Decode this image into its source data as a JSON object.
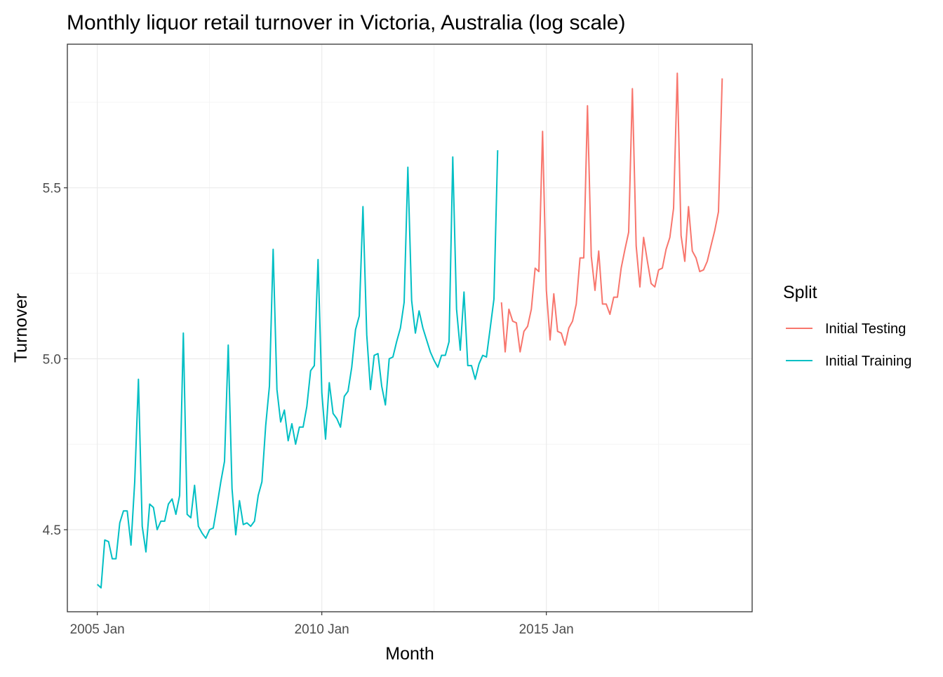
{
  "chart_data": {
    "type": "line",
    "title": "Monthly liquor retail turnover in Victoria, Australia (log scale)",
    "xlabel": "Month",
    "ylabel": "Turnover",
    "x_ticks": [
      "2005 Jan",
      "2010 Jan",
      "2015 Jan"
    ],
    "y_ticks": [
      "4.5",
      "5.0",
      "5.5"
    ],
    "x_range": [
      "2004-05",
      "2019-08"
    ],
    "ylim": [
      4.26,
      5.92
    ],
    "grid": true,
    "legend": {
      "title": "Split",
      "placement": "right"
    },
    "series": [
      {
        "name": "Initial Testing",
        "color": "#F8766D",
        "start": "2014-01",
        "values": [
          5.165,
          5.02,
          5.145,
          5.11,
          5.105,
          5.02,
          5.08,
          5.095,
          5.145,
          5.265,
          5.255,
          5.665,
          5.2,
          5.055,
          5.19,
          5.08,
          5.075,
          5.04,
          5.09,
          5.11,
          5.16,
          5.295,
          5.295,
          5.74,
          5.3,
          5.2,
          5.315,
          5.16,
          5.16,
          5.13,
          5.18,
          5.18,
          5.265,
          5.32,
          5.37,
          5.79,
          5.33,
          5.21,
          5.355,
          5.285,
          5.22,
          5.21,
          5.26,
          5.265,
          5.32,
          5.355,
          5.44,
          5.835,
          5.36,
          5.285,
          5.445,
          5.315,
          5.295,
          5.255,
          5.26,
          5.285,
          5.33,
          5.375,
          5.43,
          5.82
        ]
      },
      {
        "name": "Initial Training",
        "color": "#00BFC4",
        "start": "2005-01",
        "values": [
          4.34,
          4.33,
          4.47,
          4.465,
          4.415,
          4.415,
          4.52,
          4.555,
          4.555,
          4.455,
          4.64,
          4.94,
          4.51,
          4.435,
          4.575,
          4.565,
          4.5,
          4.525,
          4.525,
          4.575,
          4.59,
          4.545,
          4.6,
          5.075,
          4.545,
          4.535,
          4.63,
          4.51,
          4.49,
          4.475,
          4.5,
          4.505,
          4.57,
          4.64,
          4.7,
          5.04,
          4.62,
          4.485,
          4.585,
          4.515,
          4.52,
          4.51,
          4.525,
          4.6,
          4.64,
          4.805,
          4.92,
          5.32,
          4.91,
          4.815,
          4.85,
          4.76,
          4.81,
          4.75,
          4.8,
          4.8,
          4.86,
          4.965,
          4.98,
          5.29,
          4.9,
          4.765,
          4.93,
          4.84,
          4.825,
          4.8,
          4.89,
          4.905,
          4.975,
          5.085,
          5.125,
          5.445,
          5.07,
          4.91,
          5.01,
          5.015,
          4.92,
          4.865,
          5.0,
          5.005,
          5.05,
          5.09,
          5.165,
          5.56,
          5.17,
          5.075,
          5.14,
          5.09,
          5.055,
          5.02,
          4.995,
          4.975,
          5.01,
          5.01,
          5.05,
          5.59,
          5.145,
          5.025,
          5.195,
          4.98,
          4.98,
          4.94,
          4.985,
          5.01,
          5.005,
          5.09,
          5.175,
          5.61
        ]
      }
    ]
  }
}
